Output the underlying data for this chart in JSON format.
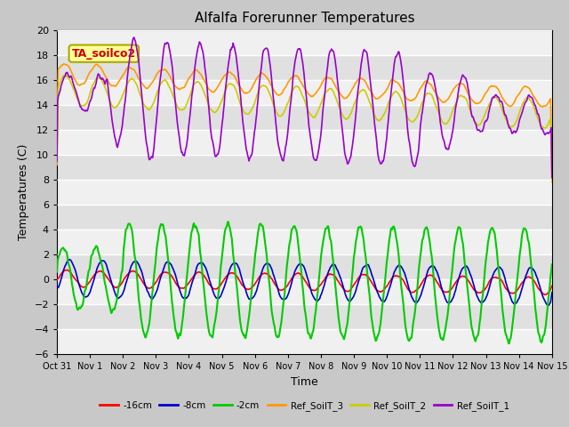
{
  "title": "Alfalfa Forerunner Temperatures",
  "xlabel": "Time",
  "ylabel": "Temperatures (C)",
  "ylim": [
    -6,
    20
  ],
  "yticks": [
    -6,
    -4,
    -2,
    0,
    2,
    4,
    6,
    8,
    10,
    12,
    14,
    16,
    18,
    20
  ],
  "annotation_text": "TA_soilco2",
  "annotation_bg": "#ffff99",
  "annotation_border": "#aaaa00",
  "annotation_fg": "#cc0000",
  "colors": {
    "16cm": "#ff0000",
    "8cm": "#0000cc",
    "2cm": "#00cc00",
    "Ref_SoilT_3": "#ff9900",
    "Ref_SoilT_2": "#cccc00",
    "Ref_SoilT_1": "#9900cc"
  },
  "fig_bg": "#c8c8c8",
  "plot_bg": "#e0e0e0",
  "grid_color": "#ffffff",
  "tick_label_size": 7,
  "axis_label_size": 9,
  "title_size": 11
}
